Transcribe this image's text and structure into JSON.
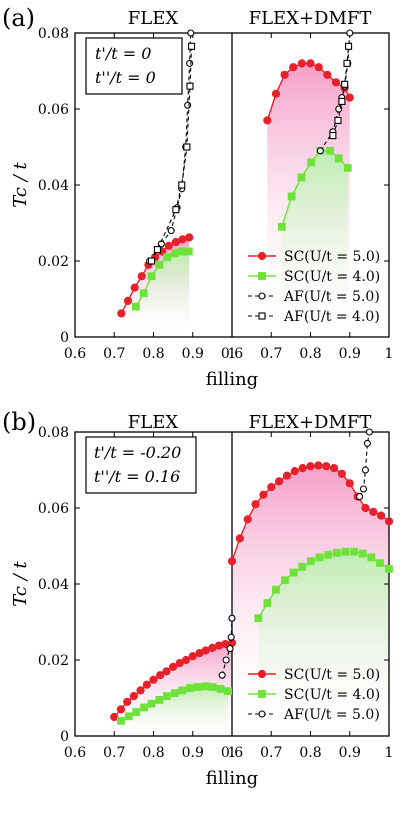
{
  "chart_data": [
    {
      "type": "line",
      "panel_label": "(a)",
      "left_title": "FLEX",
      "right_title": "FLEX+DMFT",
      "params": [
        "t'/t = 0",
        "t''/t = 0"
      ],
      "ylabel": "Tc / t",
      "xlabel": "filling",
      "ylim": [
        0,
        0.08
      ],
      "yticks": [
        "0",
        "0.02",
        "0.04",
        "0.06",
        "0.08"
      ],
      "left_xlim": [
        0.6,
        1.0
      ],
      "right_xlim": [
        0.6,
        1.0
      ],
      "xtick_labels": [
        "0.6",
        "0.7",
        "0.8",
        "0.9",
        "1",
        "0.6",
        "0.7",
        "0.8",
        "0.9",
        "1"
      ],
      "legend": [
        "SC(U/t = 5.0)",
        "SC(U/t = 4.0)",
        "AF(U/t = 5.0)",
        "AF(U/t = 4.0)"
      ],
      "legend_position": "bottom-right",
      "series": [
        {
          "name": "SC(U/t = 5.0)",
          "panel": "FLEX",
          "color": "#e8202a",
          "marker": "circle",
          "shade": "#f59ec8",
          "x": [
            0.718,
            0.735,
            0.752,
            0.77,
            0.787,
            0.804,
            0.822,
            0.839,
            0.857,
            0.874,
            0.891
          ],
          "y": [
            0.0062,
            0.0095,
            0.013,
            0.016,
            0.019,
            0.021,
            0.0225,
            0.024,
            0.025,
            0.0257,
            0.0262
          ]
        },
        {
          "name": "SC(U/t = 4.0)",
          "panel": "FLEX",
          "color": "#6de33a",
          "marker": "square",
          "shade": "#bdeeb0",
          "x": [
            0.755,
            0.775,
            0.795,
            0.815,
            0.835,
            0.855,
            0.872,
            0.89
          ],
          "y": [
            0.008,
            0.0115,
            0.016,
            0.019,
            0.021,
            0.022,
            0.0225,
            0.0225
          ]
        },
        {
          "name": "AF(U/t = 5.0)",
          "panel": "FLEX",
          "color": "#000000",
          "marker": "open-circle",
          "x": [
            0.79,
            0.82,
            0.845,
            0.86,
            0.872,
            0.882,
            0.887,
            0.892,
            0.895
          ],
          "y": [
            0.02,
            0.0245,
            0.028,
            0.034,
            0.039,
            0.05,
            0.061,
            0.072,
            0.08
          ]
        },
        {
          "name": "AF(U/t = 4.0)",
          "panel": "FLEX",
          "color": "#000000",
          "marker": "open-square",
          "x": [
            0.795,
            0.81,
            0.857,
            0.872,
            0.885,
            0.893,
            0.897
          ],
          "y": [
            0.02,
            0.023,
            0.0335,
            0.04,
            0.05,
            0.066,
            0.0765
          ]
        },
        {
          "name": "SC(U/t = 5.0)",
          "panel": "FLEX+DMFT",
          "color": "#e8202a",
          "marker": "circle",
          "shade": "#f59ec8",
          "x": [
            0.69,
            0.712,
            0.734,
            0.756,
            0.778,
            0.8,
            0.821,
            0.843,
            0.865,
            0.887,
            0.9
          ],
          "y": [
            0.057,
            0.064,
            0.069,
            0.071,
            0.072,
            0.072,
            0.071,
            0.069,
            0.067,
            0.0655,
            0.063
          ]
        },
        {
          "name": "SC(U/t = 4.0)",
          "panel": "FLEX+DMFT",
          "color": "#6de33a",
          "marker": "square",
          "shade": "#bdeeb0",
          "x": [
            0.727,
            0.752,
            0.777,
            0.802,
            0.825,
            0.85,
            0.872,
            0.895
          ],
          "y": [
            0.029,
            0.037,
            0.042,
            0.046,
            0.049,
            0.049,
            0.047,
            0.0445
          ]
        },
        {
          "name": "AF(U/t = 5.0)",
          "panel": "FLEX+DMFT",
          "color": "#000000",
          "marker": "open-circle",
          "x": [
            0.825,
            0.857,
            0.872,
            0.88,
            0.887,
            0.895,
            0.9
          ],
          "y": [
            0.049,
            0.054,
            0.06,
            0.063,
            0.066,
            0.072,
            0.08
          ]
        },
        {
          "name": "AF(U/t = 4.0)",
          "panel": "FLEX+DMFT",
          "color": "#000000",
          "marker": "open-square",
          "x": [
            0.857,
            0.87,
            0.88,
            0.887,
            0.893,
            0.897
          ],
          "y": [
            0.053,
            0.057,
            0.062,
            0.0665,
            0.072,
            0.0765
          ]
        }
      ]
    },
    {
      "type": "line",
      "panel_label": "(b)",
      "left_title": "FLEX",
      "right_title": "FLEX+DMFT",
      "params": [
        "t'/t = -0.20",
        "t''/t = 0.16"
      ],
      "ylabel": "Tc / t",
      "xlabel": "filling",
      "ylim": [
        0,
        0.08
      ],
      "yticks": [
        "0",
        "0.02",
        "0.04",
        "0.06",
        "0.08"
      ],
      "left_xlim": [
        0.6,
        1.0
      ],
      "right_xlim": [
        0.6,
        1.0
      ],
      "xtick_labels": [
        "0.6",
        "0.7",
        "0.8",
        "0.9",
        "1",
        "0.6",
        "0.7",
        "0.8",
        "0.9",
        "1"
      ],
      "legend": [
        "SC(U/t = 5.0)",
        "SC(U/t = 4.0)",
        "AF(U/t = 5.0)"
      ],
      "legend_position": "bottom-right",
      "series": [
        {
          "name": "SC(U/t = 5.0)",
          "panel": "FLEX",
          "color": "#e8202a",
          "marker": "circle",
          "shade": "#f59ec8",
          "x": [
            0.7,
            0.717,
            0.733,
            0.75,
            0.767,
            0.783,
            0.8,
            0.817,
            0.833,
            0.85,
            0.867,
            0.883,
            0.9,
            0.917,
            0.933,
            0.95,
            0.967,
            0.983,
            1.0
          ],
          "y": [
            0.005,
            0.007,
            0.009,
            0.0105,
            0.012,
            0.0135,
            0.0148,
            0.016,
            0.017,
            0.0182,
            0.0192,
            0.02,
            0.021,
            0.0218,
            0.0225,
            0.0232,
            0.0238,
            0.0242,
            0.0245
          ]
        },
        {
          "name": "SC(U/t = 4.0)",
          "panel": "FLEX",
          "color": "#6de33a",
          "marker": "square",
          "shade": "#bdeeb0",
          "x": [
            0.717,
            0.737,
            0.756,
            0.776,
            0.795,
            0.815,
            0.834,
            0.854,
            0.873,
            0.893,
            0.912,
            0.932,
            0.951,
            0.971,
            0.99
          ],
          "y": [
            0.004,
            0.0052,
            0.0063,
            0.0075,
            0.0085,
            0.0095,
            0.0105,
            0.0113,
            0.012,
            0.0126,
            0.0129,
            0.0131,
            0.0129,
            0.0124,
            0.0118
          ]
        },
        {
          "name": "AF(U/t = 5.0)",
          "panel": "FLEX",
          "color": "#000000",
          "marker": "open-circle",
          "x": [
            0.975,
            0.985,
            0.995,
            0.998,
            1.0
          ],
          "y": [
            0.016,
            0.02,
            0.023,
            0.026,
            0.031
          ]
        },
        {
          "name": "SC(U/t = 5.0)",
          "panel": "FLEX+DMFT",
          "color": "#e8202a",
          "marker": "circle",
          "shade": "#f59ec8",
          "x": [
            0.6,
            0.62,
            0.64,
            0.66,
            0.68,
            0.7,
            0.72,
            0.74,
            0.76,
            0.78,
            0.8,
            0.82,
            0.84,
            0.86,
            0.88,
            0.9,
            0.92,
            0.94,
            0.96,
            0.98,
            1.0
          ],
          "y": [
            0.046,
            0.052,
            0.057,
            0.061,
            0.0635,
            0.0655,
            0.067,
            0.0685,
            0.0697,
            0.0705,
            0.071,
            0.0712,
            0.071,
            0.0705,
            0.069,
            0.0665,
            0.063,
            0.06,
            0.059,
            0.058,
            0.0565
          ]
        },
        {
          "name": "SC(U/t = 4.0)",
          "panel": "FLEX+DMFT",
          "color": "#6de33a",
          "marker": "square",
          "shade": "#bdeeb0",
          "x": [
            0.667,
            0.69,
            0.712,
            0.735,
            0.757,
            0.779,
            0.801,
            0.823,
            0.845,
            0.867,
            0.889,
            0.911,
            0.933,
            0.955,
            0.977,
            1.0
          ],
          "y": [
            0.031,
            0.035,
            0.0385,
            0.041,
            0.043,
            0.0445,
            0.046,
            0.047,
            0.0477,
            0.0482,
            0.0485,
            0.0485,
            0.048,
            0.047,
            0.0455,
            0.044
          ]
        },
        {
          "name": "AF(U/t = 5.0)",
          "panel": "FLEX+DMFT",
          "color": "#000000",
          "marker": "open-circle",
          "x": [
            0.925,
            0.935,
            0.94,
            0.945,
            0.95
          ],
          "y": [
            0.063,
            0.065,
            0.07,
            0.077,
            0.08
          ]
        }
      ]
    }
  ]
}
